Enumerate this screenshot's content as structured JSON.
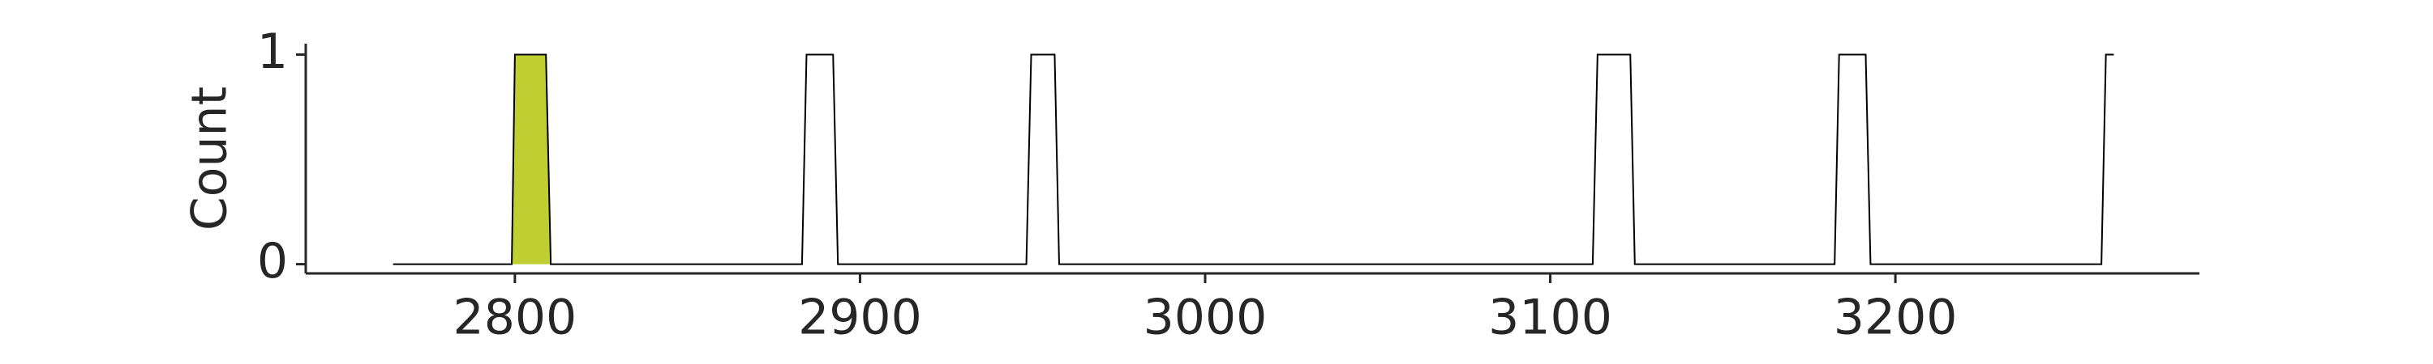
{
  "chart_data": {
    "type": "line",
    "y_label": "Count",
    "xlim": [
      2739.4,
      3288.1
    ],
    "ylim": [
      -0.044,
      1.052
    ],
    "xticks": [
      2800,
      2900,
      3000,
      3100,
      3200
    ],
    "yticks": [
      0,
      1
    ],
    "grid": false,
    "series": [
      {
        "color": "#000000",
        "x": [
          2764.7,
          2799.1,
          2800,
          2809,
          2810.4,
          2883.2,
          2884.5,
          2892.2,
          2893.6,
          2948.2,
          2949.6,
          2956.4,
          2957.7,
          3112.3,
          3113.7,
          3123.2,
          3124.5,
          3182.4,
          3183.7,
          3191.4,
          3192.8,
          3259.7,
          3261,
          3263.3
        ],
        "values": [
          0,
          0,
          1,
          1,
          0,
          0,
          1,
          1,
          0,
          0,
          1,
          1,
          0,
          0,
          1,
          1,
          0,
          0,
          1,
          1,
          0,
          0,
          1,
          1
        ]
      },
      {
        "color": "#bfcf32",
        "fill": true,
        "x": [
          2799.1,
          2800,
          2809,
          2810.4
        ],
        "values": [
          0,
          1,
          1,
          0
        ]
      }
    ]
  }
}
